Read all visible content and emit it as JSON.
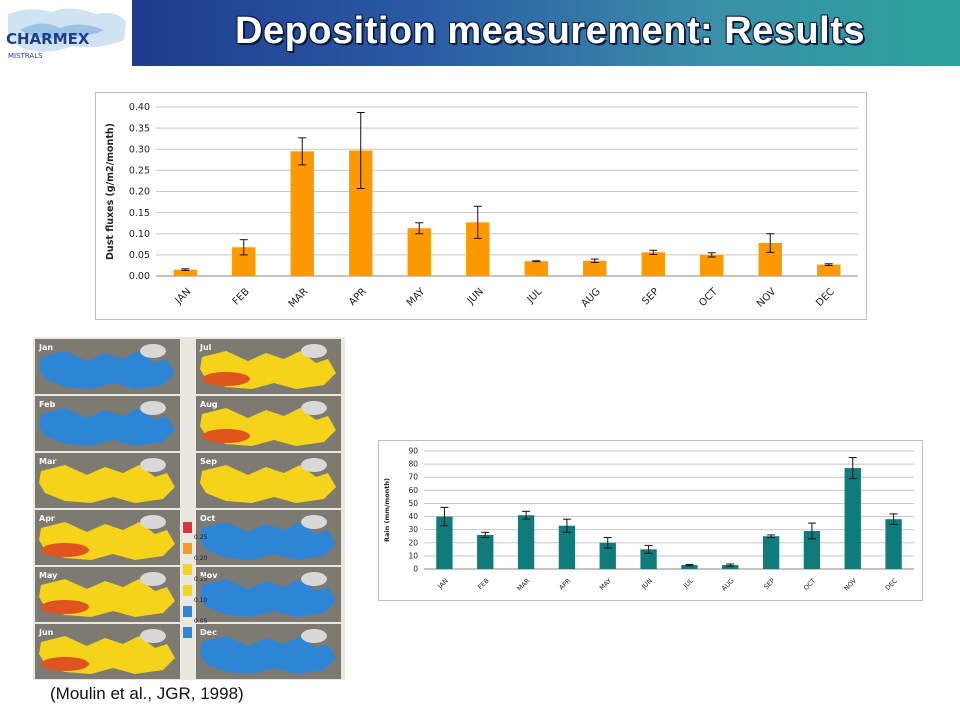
{
  "slide": {
    "title": "Deposition measurement: Results",
    "citation": "(Moulin et al., JGR, 1998)",
    "logo": {
      "text": "CHARMEX",
      "subtext": "MISTRALS",
      "icon": "mediterranean-sea-logo-icon"
    }
  },
  "colors": {
    "header_start": "#1f3c8e",
    "header_end": "#2aa19c",
    "dust_bar": "#ff9900",
    "rain_bar": "#0f7b7b",
    "map_sea_low": "#2f86d6",
    "map_sea_mid": "#f5d31a",
    "map_sea_high": "#e0541f",
    "map_land": "#d8d8d8"
  },
  "maps": {
    "months_left": [
      "Jan",
      "Feb",
      "Mar",
      "Apr",
      "May",
      "Jun"
    ],
    "months_right": [
      "Jul",
      "Aug",
      "Sep",
      "Oct",
      "Nov",
      "Dec"
    ],
    "color_scale_labels": [
      "0.25",
      "0.20",
      "0.15",
      "0.10",
      "0.05"
    ],
    "color_scale_colors": [
      "#e0343a",
      "#f39c2c",
      "#f5d31a",
      "#f5d31a",
      "#2f86d6",
      "#2f86d6"
    ]
  },
  "chart_data": [
    {
      "type": "bar",
      "categories": [
        "JAN",
        "FEB",
        "MAR",
        "APR",
        "MAY",
        "JUN",
        "JUL",
        "AUG",
        "SEP",
        "OCT",
        "NOV",
        "DEC"
      ],
      "values": [
        0.015,
        0.068,
        0.295,
        0.297,
        0.113,
        0.127,
        0.035,
        0.036,
        0.056,
        0.05,
        0.078,
        0.027
      ],
      "errors": [
        0.002,
        0.018,
        0.032,
        0.09,
        0.013,
        0.038,
        0.001,
        0.004,
        0.005,
        0.005,
        0.022,
        0.002
      ],
      "title": "",
      "xlabel": "",
      "ylabel": "Dust fluxes (g/m2/month)",
      "ylim": [
        0,
        0.4
      ],
      "yticks": [
        "0.00",
        "0.05",
        "0.10",
        "0.15",
        "0.20",
        "0.25",
        "0.30",
        "0.35",
        "0.40"
      ],
      "grid": true,
      "color": "#ff9900"
    },
    {
      "type": "bar",
      "categories": [
        "JAN",
        "FEB",
        "MAR",
        "APR",
        "MAY",
        "JUN",
        "JUL",
        "AUG",
        "SEP",
        "OCT",
        "NOV",
        "DEC"
      ],
      "values": [
        40,
        26,
        41,
        33,
        20,
        15,
        3,
        3,
        25,
        29,
        77,
        38
      ],
      "errors": [
        7,
        2,
        3,
        5,
        4,
        3,
        0.5,
        0.8,
        1,
        6,
        8,
        4
      ],
      "title": "",
      "xlabel": "",
      "ylabel": "Rain (mm/month)",
      "ylim": [
        0,
        90
      ],
      "yticks": [
        "0",
        "10",
        "20",
        "30",
        "40",
        "50",
        "60",
        "70",
        "80",
        "90"
      ],
      "grid": true,
      "color": "#0f7b7b"
    }
  ]
}
